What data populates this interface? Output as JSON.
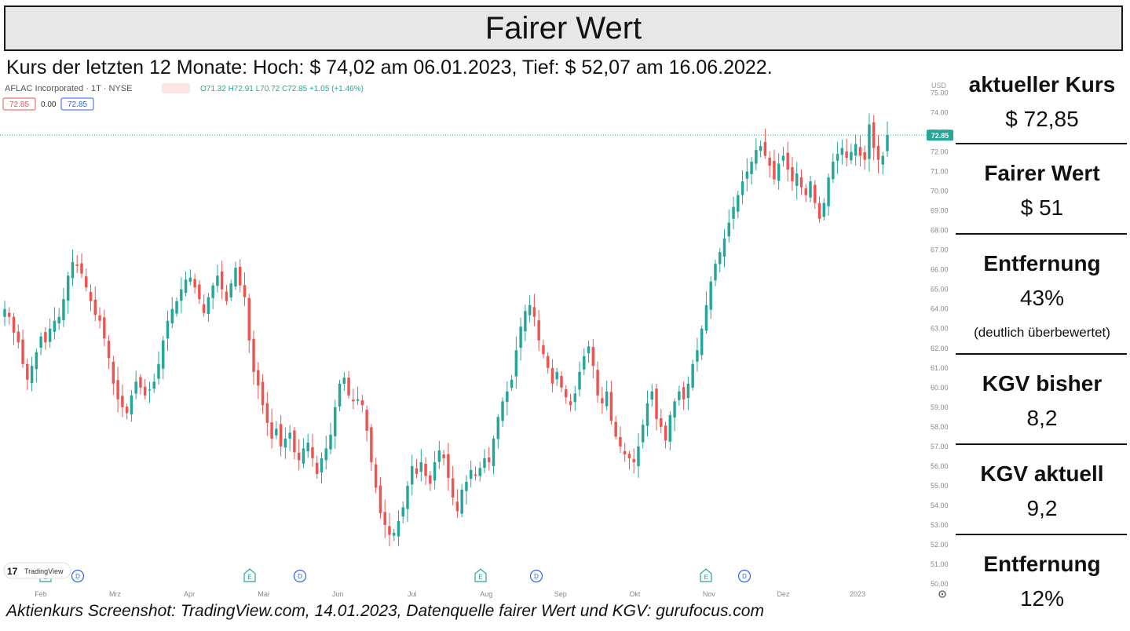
{
  "title": "Fairer Wert",
  "subtitle": "Kurs der letzten 12 Monate: Hoch: $ 74,02 am 06.01.2023, Tief: $ 52,07 am 16.06.2022.",
  "caption": "Aktienkurs Screenshot: TradingView.com, 14.01.2023, Datenquelle fairer Wert und KGV: gurufocus.com",
  "panel": [
    {
      "label": "aktueller Kurs",
      "value": "$ 72,85",
      "note": ""
    },
    {
      "label": "Fairer Wert",
      "value": "$ 51",
      "note": ""
    },
    {
      "label": "Entfernung",
      "value": "43%",
      "note": "(deutlich überbewertet)"
    },
    {
      "label": "KGV bisher",
      "value": "8,2",
      "note": ""
    },
    {
      "label": "KGV aktuell",
      "value": "9,2",
      "note": ""
    },
    {
      "label": "Entfernung",
      "value": "12%",
      "note": ""
    }
  ],
  "chart_header": {
    "symbol": "AFLAC Incorporated · 1T · NYSE",
    "ohlc": "O71.32 H72.91 L70.72 C72.85 +1.05 (+1.46%)",
    "box1": "72.85",
    "mid": "0.00",
    "box2": "72.85",
    "currency": "USD",
    "brand": "TradingView"
  },
  "colors": {
    "up": "#26a69a",
    "down": "#ef5350",
    "price_tag": "#26a69a"
  },
  "chart_data": {
    "type": "candlestick",
    "y_range": [
      50,
      75.5
    ],
    "y_ticks": [
      "50.00",
      "51.00",
      "52.00",
      "53.00",
      "54.00",
      "55.00",
      "56.00",
      "57.00",
      "58.00",
      "59.00",
      "60.00",
      "61.00",
      "62.00",
      "63.00",
      "64.00",
      "65.00",
      "66.00",
      "67.00",
      "68.00",
      "69.00",
      "70.00",
      "71.00",
      "72.00",
      "73.00",
      "74.00",
      "75.00"
    ],
    "x_labels": [
      "Feb",
      "Mrz",
      "Apr",
      "Mai",
      "Jun",
      "Jul",
      "Aug",
      "Sep",
      "Okt",
      "Nov",
      "Dez",
      "2023"
    ],
    "current_price": 72.85,
    "current_label": "72.85",
    "events": [
      {
        "type": "E",
        "month": "Feb"
      },
      {
        "type": "D",
        "month": "Feb"
      },
      {
        "type": "E",
        "month": "Mai"
      },
      {
        "type": "D",
        "month": "Mai"
      },
      {
        "type": "E",
        "month": "Aug"
      },
      {
        "type": "D",
        "month": "Aug"
      },
      {
        "type": "E",
        "month": "Nov"
      },
      {
        "type": "D",
        "month": "Nov"
      }
    ],
    "close_series": [
      64.0,
      63.6,
      62.8,
      62.3,
      61.2,
      60.4,
      61.1,
      61.8,
      62.6,
      62.3,
      63.0,
      63.4,
      63.6,
      64.5,
      65.7,
      66.4,
      66.2,
      65.8,
      65.1,
      64.4,
      63.7,
      63.4,
      62.5,
      61.5,
      60.2,
      59.4,
      59.0,
      58.7,
      59.6,
      60.3,
      60.0,
      59.6,
      59.9,
      60.3,
      61.2,
      62.4,
      63.4,
      64.0,
      64.4,
      65.0,
      65.5,
      65.6,
      65.1,
      64.5,
      63.8,
      64.6,
      65.2,
      65.7,
      65.0,
      64.4,
      65.3,
      66.1,
      65.2,
      64.6,
      62.4,
      60.8,
      60.1,
      59.1,
      58.2,
      57.4,
      57.9,
      57.0,
      57.4,
      57.7,
      56.7,
      56.3,
      56.9,
      57.2,
      56.4,
      55.6,
      56.4,
      56.9,
      57.6,
      59.0,
      60.2,
      60.5,
      59.6,
      59.3,
      59.4,
      59.1,
      57.8,
      56.2,
      54.9,
      53.6,
      53.0,
      52.5,
      52.6,
      53.2,
      53.9,
      55.0,
      56.0,
      55.6,
      56.2,
      55.5,
      55.1,
      56.2,
      56.8,
      56.4,
      55.4,
      54.4,
      53.7,
      54.8,
      55.2,
      55.8,
      55.5,
      55.9,
      56.4,
      56.2,
      57.4,
      58.5,
      59.3,
      59.8,
      60.4,
      61.9,
      63.1,
      63.9,
      64.2,
      63.6,
      62.4,
      61.7,
      61.0,
      60.2,
      60.8,
      60.0,
      59.5,
      59.1,
      59.7,
      60.8,
      61.6,
      62.1,
      61.1,
      59.6,
      59.2,
      59.8,
      58.3,
      57.5,
      57.0,
      56.6,
      56.4,
      56.2,
      57.0,
      58.1,
      59.2,
      59.8,
      58.4,
      58.0,
      57.3,
      58.6,
      59.3,
      59.8,
      59.4,
      60.2,
      61.2,
      61.9,
      63.0,
      64.2,
      65.4,
      66.3,
      66.9,
      67.6,
      68.4,
      69.2,
      69.8,
      70.5,
      71.0,
      71.5,
      72.1,
      72.3,
      71.8,
      71.3,
      70.6,
      71.4,
      71.8,
      71.1,
      70.5,
      70.9,
      70.2,
      69.8,
      70.5,
      69.4,
      68.6,
      69.4,
      70.7,
      71.5,
      71.9,
      72.2,
      71.7,
      72.0,
      72.4,
      71.8,
      71.6,
      73.4,
      72.2,
      71.6,
      71.8,
      72.85
    ]
  }
}
